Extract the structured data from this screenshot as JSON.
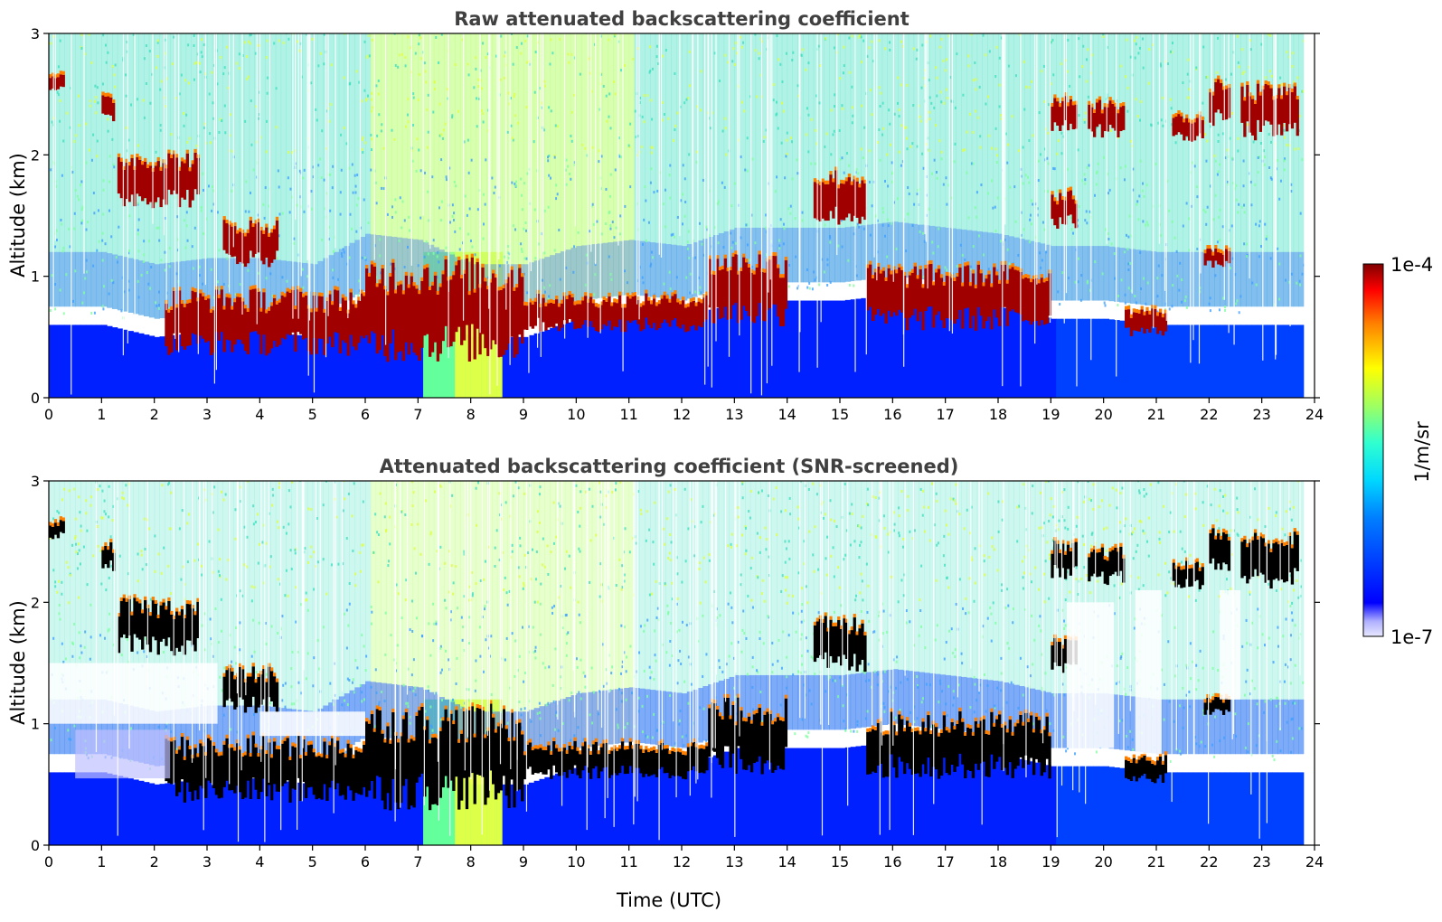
{
  "chart_data": [
    {
      "type": "heatmap",
      "title": "Raw attenuated backscattering coefficient",
      "xlabel": "",
      "ylabel": "Altitude (km)",
      "xlim": [
        0,
        24
      ],
      "ylim": [
        0,
        3
      ],
      "x_ticks": [
        0,
        1,
        2,
        3,
        4,
        5,
        6,
        7,
        8,
        9,
        10,
        11,
        12,
        13,
        14,
        15,
        16,
        17,
        18,
        19,
        20,
        21,
        22,
        23,
        24
      ],
      "y_ticks": [
        0,
        1,
        2,
        3
      ],
      "boundary_layer_top_km": [
        [
          0,
          0.6
        ],
        [
          1,
          0.6
        ],
        [
          2,
          0.5
        ],
        [
          3,
          0.55
        ],
        [
          4,
          0.55
        ],
        [
          5,
          0.5
        ],
        [
          6,
          0.75
        ],
        [
          7,
          0.7
        ],
        [
          8,
          0.5
        ],
        [
          9,
          0.5
        ],
        [
          10,
          0.65
        ],
        [
          11,
          0.7
        ],
        [
          12,
          0.65
        ],
        [
          13,
          0.8
        ],
        [
          14,
          0.8
        ],
        [
          15,
          0.8
        ],
        [
          16,
          0.85
        ],
        [
          17,
          0.8
        ],
        [
          18,
          0.75
        ],
        [
          19,
          0.65
        ],
        [
          20,
          0.65
        ],
        [
          21,
          0.6
        ],
        [
          22,
          0.6
        ],
        [
          23,
          0.6
        ],
        [
          23.8,
          0.6
        ]
      ],
      "cloud_layers": [
        {
          "x0": 0.0,
          "x1": 0.3,
          "y0": 2.55,
          "y1": 2.65
        },
        {
          "x0": 1.0,
          "x1": 1.25,
          "y0": 2.3,
          "y1": 2.45
        },
        {
          "x0": 1.3,
          "x1": 2.8,
          "y0": 1.65,
          "y1": 1.95
        },
        {
          "x0": 3.3,
          "x1": 4.3,
          "y0": 1.15,
          "y1": 1.4
        },
        {
          "x0": 2.2,
          "x1": 6.0,
          "y0": 0.45,
          "y1": 0.8
        },
        {
          "x0": 6.0,
          "x1": 9.0,
          "y0": 0.45,
          "y1": 1.0
        },
        {
          "x0": 9.0,
          "x1": 12.5,
          "y0": 0.6,
          "y1": 0.8
        },
        {
          "x0": 12.5,
          "x1": 14.0,
          "y0": 0.7,
          "y1": 1.1
        },
        {
          "x0": 14.5,
          "x1": 15.5,
          "y0": 1.5,
          "y1": 1.8
        },
        {
          "x0": 15.5,
          "x1": 19.0,
          "y0": 0.65,
          "y1": 1.0
        },
        {
          "x0": 19.0,
          "x1": 19.5,
          "y0": 2.25,
          "y1": 2.45
        },
        {
          "x0": 19.0,
          "x1": 19.5,
          "y0": 1.45,
          "y1": 1.65
        },
        {
          "x0": 19.7,
          "x1": 20.4,
          "y0": 2.2,
          "y1": 2.4
        },
        {
          "x0": 20.4,
          "x1": 21.2,
          "y0": 0.55,
          "y1": 0.7
        },
        {
          "x0": 21.3,
          "x1": 21.9,
          "y0": 2.15,
          "y1": 2.3
        },
        {
          "x0": 21.9,
          "x1": 22.4,
          "y0": 1.1,
          "y1": 1.2
        },
        {
          "x0": 22.0,
          "x1": 22.4,
          "y0": 2.3,
          "y1": 2.55
        },
        {
          "x0": 22.6,
          "x1": 23.7,
          "y0": 2.2,
          "y1": 2.5
        }
      ],
      "aerosol_plume": {
        "x0": 7.0,
        "x1": 8.5,
        "y0": 0.0,
        "y1": 1.3
      }
    },
    {
      "type": "heatmap",
      "title": "Attenuated backscattering coefficient (SNR-screened)",
      "xlabel": "Time (UTC)",
      "ylabel": "Altitude (km)",
      "xlim": [
        0,
        24
      ],
      "ylim": [
        0,
        3
      ],
      "x_ticks": [
        0,
        1,
        2,
        3,
        4,
        5,
        6,
        7,
        8,
        9,
        10,
        11,
        12,
        13,
        14,
        15,
        16,
        17,
        18,
        19,
        20,
        21,
        22,
        23,
        24
      ],
      "y_ticks": [
        0,
        1,
        2,
        3
      ],
      "screened_gaps": [
        {
          "x0": 0.0,
          "x1": 3.2,
          "y0": 1.0,
          "y1": 1.5
        },
        {
          "x0": 4.0,
          "x1": 6.0,
          "y0": 0.9,
          "y1": 1.1
        },
        {
          "x0": 19.3,
          "x1": 20.2,
          "y0": 0.8,
          "y1": 2.0
        },
        {
          "x0": 20.6,
          "x1": 21.1,
          "y0": 0.75,
          "y1": 2.1
        },
        {
          "x0": 22.2,
          "x1": 22.6,
          "y0": 1.2,
          "y1": 2.1
        }
      ],
      "fog_layer": {
        "x0": 0.5,
        "x1": 2.3,
        "y0": 0.55,
        "y1": 0.95
      }
    }
  ],
  "colorbar": {
    "label": "1/m/sr",
    "min_label": "1e-7",
    "max_label": "1e-4",
    "scale": "log",
    "range": [
      1e-07,
      0.0001
    ],
    "colormap": "jet"
  },
  "colors": {
    "low": "#0000ff",
    "mid": "#00e5e5",
    "high": "#ffff00",
    "max": "#800000",
    "screened_core": "#000000",
    "background": "#ffffff"
  }
}
